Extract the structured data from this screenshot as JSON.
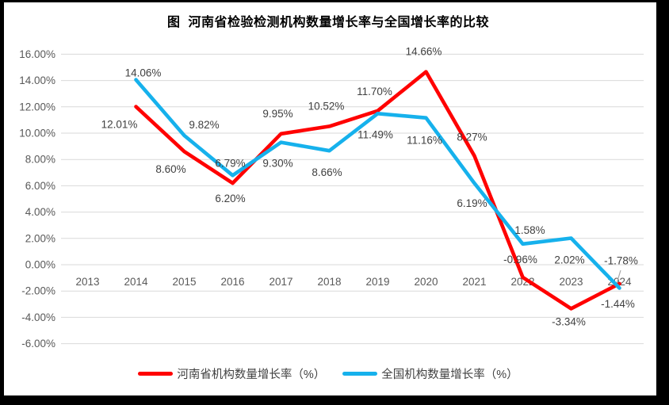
{
  "title": "图  河南省检验检测机构数量增长率与全国增长率的比较",
  "colors": {
    "background": "#FFFFFF",
    "frame": "#000000",
    "grid": "#D9D9D9",
    "axis_text": "#595959",
    "data_label_text": "#404040",
    "leader_line": "#A6A6A6",
    "henan_red": "#FF0000",
    "national_blue": "#16B1EC"
  },
  "chart_data": {
    "type": "line",
    "title": "图  河南省检验检测机构数量增长率与全国增长率的比较",
    "categories": [
      "2013",
      "2014",
      "2015",
      "2016",
      "2017",
      "2018",
      "2019",
      "2020",
      "2021",
      "2022",
      "2023",
      "2024"
    ],
    "series": [
      {
        "name": "河南省机构数量增长率（%）",
        "color": "#FF0000",
        "values": [
          null,
          12.01,
          8.6,
          6.2,
          9.95,
          10.52,
          11.7,
          14.66,
          8.27,
          -0.96,
          -3.34,
          -1.44
        ],
        "labels": [
          null,
          "12.01%",
          "8.60%",
          "6.20%",
          "9.95%",
          "10.52%",
          "11.70%",
          "14.66%",
          "8.27%",
          "-0.96%",
          "-3.34%",
          "-1.44%"
        ]
      },
      {
        "name": "全国机构数量增长率（%）",
        "color": "#16B1EC",
        "values": [
          null,
          14.06,
          9.82,
          6.79,
          9.3,
          8.66,
          11.49,
          11.16,
          6.19,
          1.58,
          2.02,
          -1.78
        ],
        "labels": [
          null,
          "14.06%",
          "9.82%",
          "6.79%",
          "9.30%",
          "8.66%",
          "11.49%",
          "11.16%",
          "6.19%",
          "1.58%",
          "2.02%",
          "-1.78%"
        ]
      }
    ],
    "y_tick_labels": [
      "16.00%",
      "14.00%",
      "12.00%",
      "10.00%",
      "8.00%",
      "6.00%",
      "4.00%",
      "2.00%",
      "0.00%",
      "-2.00%",
      "-4.00%",
      "-6.00%"
    ],
    "ylim": [
      -6,
      16
    ],
    "y_tick_step": 2,
    "xlabel": "",
    "ylabel": "",
    "grid": true,
    "data_labels": true,
    "legend_position": "bottom"
  }
}
